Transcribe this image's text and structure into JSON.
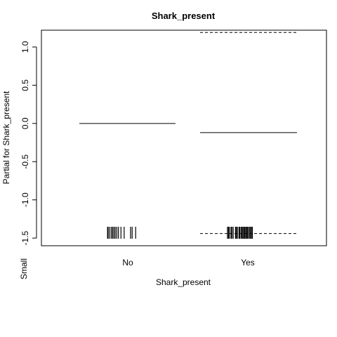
{
  "chart_data": {
    "type": "line",
    "title": "Shark_present",
    "xlabel": "Shark_present",
    "ylabel": "Partial for Shark_present",
    "side_label": "Small",
    "categories": [
      "No",
      "Yes"
    ],
    "ylim": [
      -1.6,
      1.22
    ],
    "yticks": [
      -1.5,
      -1.0,
      -0.5,
      0.0,
      0.5,
      1.0
    ],
    "ytick_labels": [
      "-1.5",
      "-1.0",
      "-0.5",
      "0.0",
      "0.5",
      "1.0"
    ],
    "series": [
      {
        "category": "No",
        "fit": 0.0
      },
      {
        "category": "Yes",
        "fit": -0.12,
        "upper": 1.19,
        "lower": -1.44
      }
    ],
    "rug": {
      "No": [
        0.18,
        0.2,
        0.25,
        0.3,
        0.34,
        0.38,
        0.42,
        0.47,
        0.52,
        0.6,
        0.7,
        0.9,
        0.95,
        1.06
      ],
      "Yes": [
        0.22,
        0.25,
        0.28,
        0.33,
        0.36,
        0.4,
        0.47,
        0.5,
        0.53,
        0.58,
        0.6,
        0.64,
        0.67,
        0.7,
        0.73,
        0.76,
        0.79,
        0.82,
        0.84,
        0.87,
        0.91,
        0.94,
        0.97,
        1.0
      ]
    },
    "grid": false,
    "legend": "none"
  }
}
